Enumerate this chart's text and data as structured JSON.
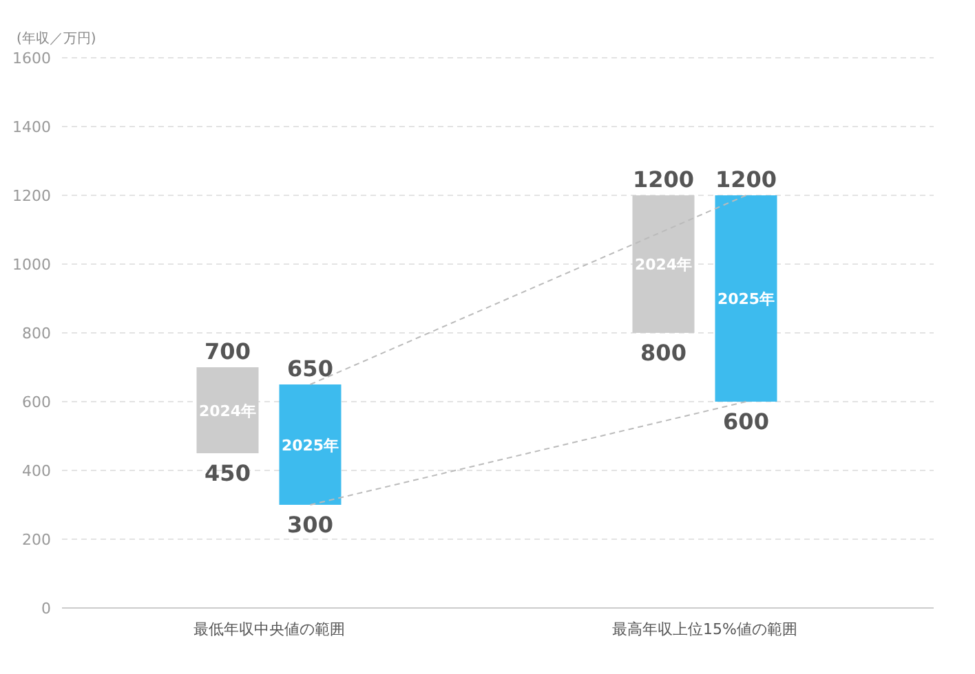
{
  "chart_data": {
    "type": "bar",
    "ylabel": "(年収／万円)",
    "categories": [
      "最低年収中央値の範囲",
      "最高年収上位15%値の範囲"
    ],
    "series": [
      {
        "name": "2024年",
        "color": "#cccccc",
        "base": [
          450,
          800
        ],
        "values": [
          250,
          400
        ]
      },
      {
        "name": "2025年",
        "color": "#3dbbee",
        "base": [
          300,
          600
        ],
        "values": [
          350,
          600
        ]
      },
      {
        "type": "line",
        "color": "#bbbbbb",
        "line_style": "dashed",
        "values": [
          650,
          1200
        ]
      },
      {
        "type": "line",
        "color": "#bbbbbb",
        "line_style": "dashed",
        "values": [
          300,
          600
        ]
      }
    ],
    "ylim": [
      0,
      1600
    ],
    "yticks": [
      0,
      200,
      400,
      600,
      800,
      1000,
      1200,
      1400,
      1600
    ],
    "grid": "y",
    "annotations": [
      "700",
      "450",
      "650",
      "300",
      "1200",
      "800",
      "1200",
      "600"
    ]
  }
}
